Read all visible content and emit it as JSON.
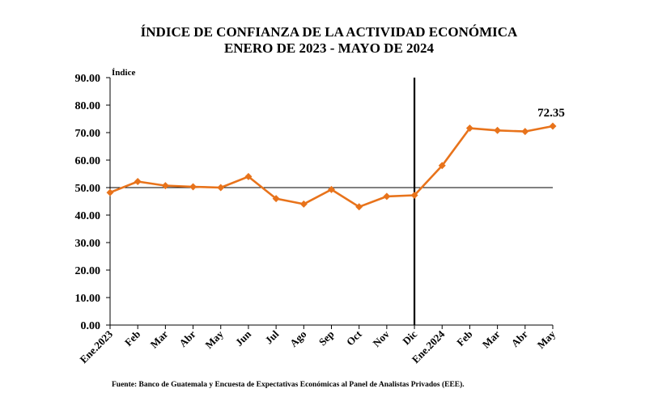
{
  "chart_data": {
    "type": "line",
    "title": "ÍNDICE DE CONFIANZA DE LA ACTIVIDAD ECONÓMICA",
    "subtitle": "ENERO DE 2023 - MAYO DE 2024",
    "ylabel": "Índice",
    "xlabel": "",
    "ylim": [
      0,
      90
    ],
    "yticks": [
      "0.00",
      "10.00",
      "20.00",
      "30.00",
      "40.00",
      "50.00",
      "60.00",
      "70.00",
      "80.00",
      "90.00"
    ],
    "categories": [
      "Ene.2023",
      "Feb",
      "Mar",
      "Abr",
      "May",
      "Jun",
      "Jul",
      "Ago",
      "Sep",
      "Oct",
      "Nov",
      "Dic",
      "Ene.2024",
      "Feb",
      "Mar",
      "Abr",
      "May"
    ],
    "series": [
      {
        "values": [
          48.2,
          52.2,
          50.7,
          50.3,
          50.0,
          54.0,
          46.0,
          44.0,
          49.3,
          43.0,
          46.8,
          47.2,
          58.0,
          71.6,
          70.8,
          70.4,
          72.35
        ]
      }
    ],
    "reference_line": 50,
    "divider_after_category": "Dic",
    "annotation": "72.35",
    "source": "Fuente: Banco de Guatemala y Encuesta de Expectativas Económicas al Panel de Analistas Privados (EEE).",
    "colors": {
      "series": "#E8731B",
      "axis": "#000000"
    }
  }
}
